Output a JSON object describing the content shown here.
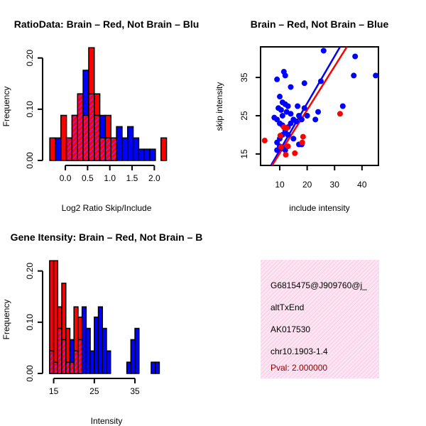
{
  "colors": {
    "red": "#ff0000",
    "blue": "#0000ff",
    "purple": "#a020f0",
    "hatch_bg": "#fce4f2",
    "hatch_line": "#f2b8da",
    "pval": "#8b0000"
  },
  "chart_data": [
    {
      "id": "ratio",
      "type": "bar",
      "title": "RatioData: Brain – Red, Not Brain – Blu",
      "xlabel": "Log2 Ratio Skip/Include",
      "ylabel": "Frequency",
      "xlim": [
        -0.4,
        2.25
      ],
      "ylim": [
        0,
        0.23
      ],
      "xticks": [
        0.0,
        0.5,
        1.0,
        1.5,
        2.0
      ],
      "xtick_labels": [
        "0.0",
        "0.5",
        "1.0",
        "1.5",
        "2.0"
      ],
      "yticks": [
        0.0,
        0.1,
        0.2
      ],
      "ytick_labels": [
        "0.00",
        "0.10",
        "0.20"
      ],
      "bin_start": -0.35,
      "bin_width": 0.125,
      "series": [
        {
          "name": "Not Brain",
          "color": "blue",
          "values": [
            0.0,
            0.044,
            0.0,
            0.044,
            0.088,
            0.13,
            0.176,
            0.13,
            0.088,
            0.088,
            0.044,
            0.044,
            0.066,
            0.044,
            0.066,
            0.044,
            0.022,
            0.022,
            0.022,
            0.0,
            0.0
          ]
        },
        {
          "name": "Brain",
          "color": "red",
          "values": [
            0.044,
            0.0,
            0.088,
            0.044,
            0.088,
            0.13,
            0.088,
            0.22,
            0.13,
            0.044,
            0.088,
            0.044,
            0.0,
            0.0,
            0.0,
            0.0,
            0.0,
            0.0,
            0.0,
            0.0,
            0.044
          ]
        }
      ]
    },
    {
      "id": "scatter",
      "type": "scatter",
      "title": "Brain – Red, Not Brain – Blue",
      "xlabel": "include intensity",
      "ylabel": "skip intensity",
      "xlim": [
        3,
        46
      ],
      "ylim": [
        12,
        43
      ],
      "xticks": [
        10,
        20,
        30,
        40
      ],
      "xtick_labels": [
        "10",
        "20",
        "30",
        "40"
      ],
      "yticks": [
        15,
        25,
        35
      ],
      "ytick_labels": [
        "15",
        "25",
        "35"
      ],
      "series": [
        {
          "name": "Brain",
          "color": "red",
          "points": [
            [
              4.5,
              18.5
            ],
            [
              10.5,
              16.8
            ],
            [
              10.2,
              19.8
            ],
            [
              11.5,
              22.0
            ],
            [
              12.5,
              21.8
            ],
            [
              12.2,
              14.8
            ],
            [
              13.0,
              17.0
            ],
            [
              15.5,
              15.2
            ],
            [
              18.5,
              19.5
            ],
            [
              18.2,
              18.0
            ],
            [
              32.0,
              25.5
            ]
          ],
          "fit": [
            [
              7.2,
              12.0
            ],
            [
              34.5,
              43.0
            ]
          ]
        },
        {
          "name": "Not Brain",
          "color": "blue",
          "points": [
            [
              26,
              42
            ],
            [
              37.5,
              40.5
            ],
            [
              37,
              35.5
            ],
            [
              45,
              35.5
            ],
            [
              11.5,
              36.5
            ],
            [
              12,
              35.5
            ],
            [
              9,
              34.5
            ],
            [
              14,
              32.5
            ],
            [
              19,
              33.5
            ],
            [
              25,
              34.0
            ],
            [
              10,
              30
            ],
            [
              11,
              28.5
            ],
            [
              12,
              28
            ],
            [
              13,
              27.5
            ],
            [
              9.5,
              27
            ],
            [
              10.5,
              26.5
            ],
            [
              12.5,
              26
            ],
            [
              14,
              25.5
            ],
            [
              15,
              24
            ],
            [
              16,
              23.5
            ],
            [
              17,
              25
            ],
            [
              11,
              25
            ],
            [
              8,
              24.5
            ],
            [
              9,
              24
            ],
            [
              10,
              23
            ],
            [
              11,
              22.5
            ],
            [
              13,
              22
            ],
            [
              14,
              23
            ],
            [
              18,
              24
            ],
            [
              20,
              25
            ],
            [
              23,
              24
            ],
            [
              12,
              21
            ],
            [
              11,
              20
            ],
            [
              10,
              19
            ],
            [
              13,
              20
            ],
            [
              15,
              19
            ],
            [
              9,
              18
            ],
            [
              10,
              17
            ],
            [
              11,
              16.5
            ],
            [
              12,
              16
            ],
            [
              9,
              16
            ],
            [
              17,
              17.5
            ],
            [
              18,
              17.5
            ],
            [
              33,
              27.5
            ],
            [
              16.5,
              27.5
            ],
            [
              19,
              27
            ],
            [
              24,
              26
            ]
          ],
          "fit": [
            [
              6.8,
              12.0
            ],
            [
              32.0,
              43.0
            ]
          ]
        }
      ]
    },
    {
      "id": "intensity",
      "type": "bar",
      "title": "Gene Itensity: Brain – Red, Not Brain – B",
      "xlabel": "Intensity",
      "ylabel": "Frequency",
      "xlim": [
        13.5,
        42.5
      ],
      "ylim": [
        0,
        0.23
      ],
      "xticks": [
        15,
        25,
        35
      ],
      "xtick_labels": [
        "15",
        "25",
        "35"
      ],
      "yticks": [
        0.0,
        0.1,
        0.2
      ],
      "ytick_labels": [
        "0.00",
        "0.10",
        "0.20"
      ],
      "bin_start": 14,
      "bin_width": 1,
      "series": [
        {
          "name": "Not Brain",
          "color": "blue",
          "values": [
            0.044,
            0.022,
            0.088,
            0.066,
            0.022,
            0.066,
            0.044,
            0.066,
            0.13,
            0.088,
            0.044,
            0.11,
            0.13,
            0.088,
            0.044,
            0.0,
            0.0,
            0.0,
            0.0,
            0.022,
            0.066,
            0.088,
            0.0,
            0.0,
            0.0,
            0.022,
            0.022
          ]
        },
        {
          "name": "Brain",
          "color": "red",
          "values": [
            0.22,
            0.22,
            0.13,
            0.176,
            0.088,
            0.022,
            0.13,
            0.11,
            0.0,
            0.0,
            0.0,
            0.0,
            0.0,
            0.0,
            0.0,
            0.0,
            0.0,
            0.0,
            0.0,
            0.0,
            0.0,
            0.0,
            0.0,
            0.0,
            0.0,
            0.0,
            0.0
          ]
        }
      ]
    }
  ],
  "info": {
    "id": "G6815475@J909760@j_",
    "type": "altTxEnd",
    "accession": "AK017530",
    "location": "chr10.1903-1.4",
    "pval": "Pval: 2.000000"
  }
}
